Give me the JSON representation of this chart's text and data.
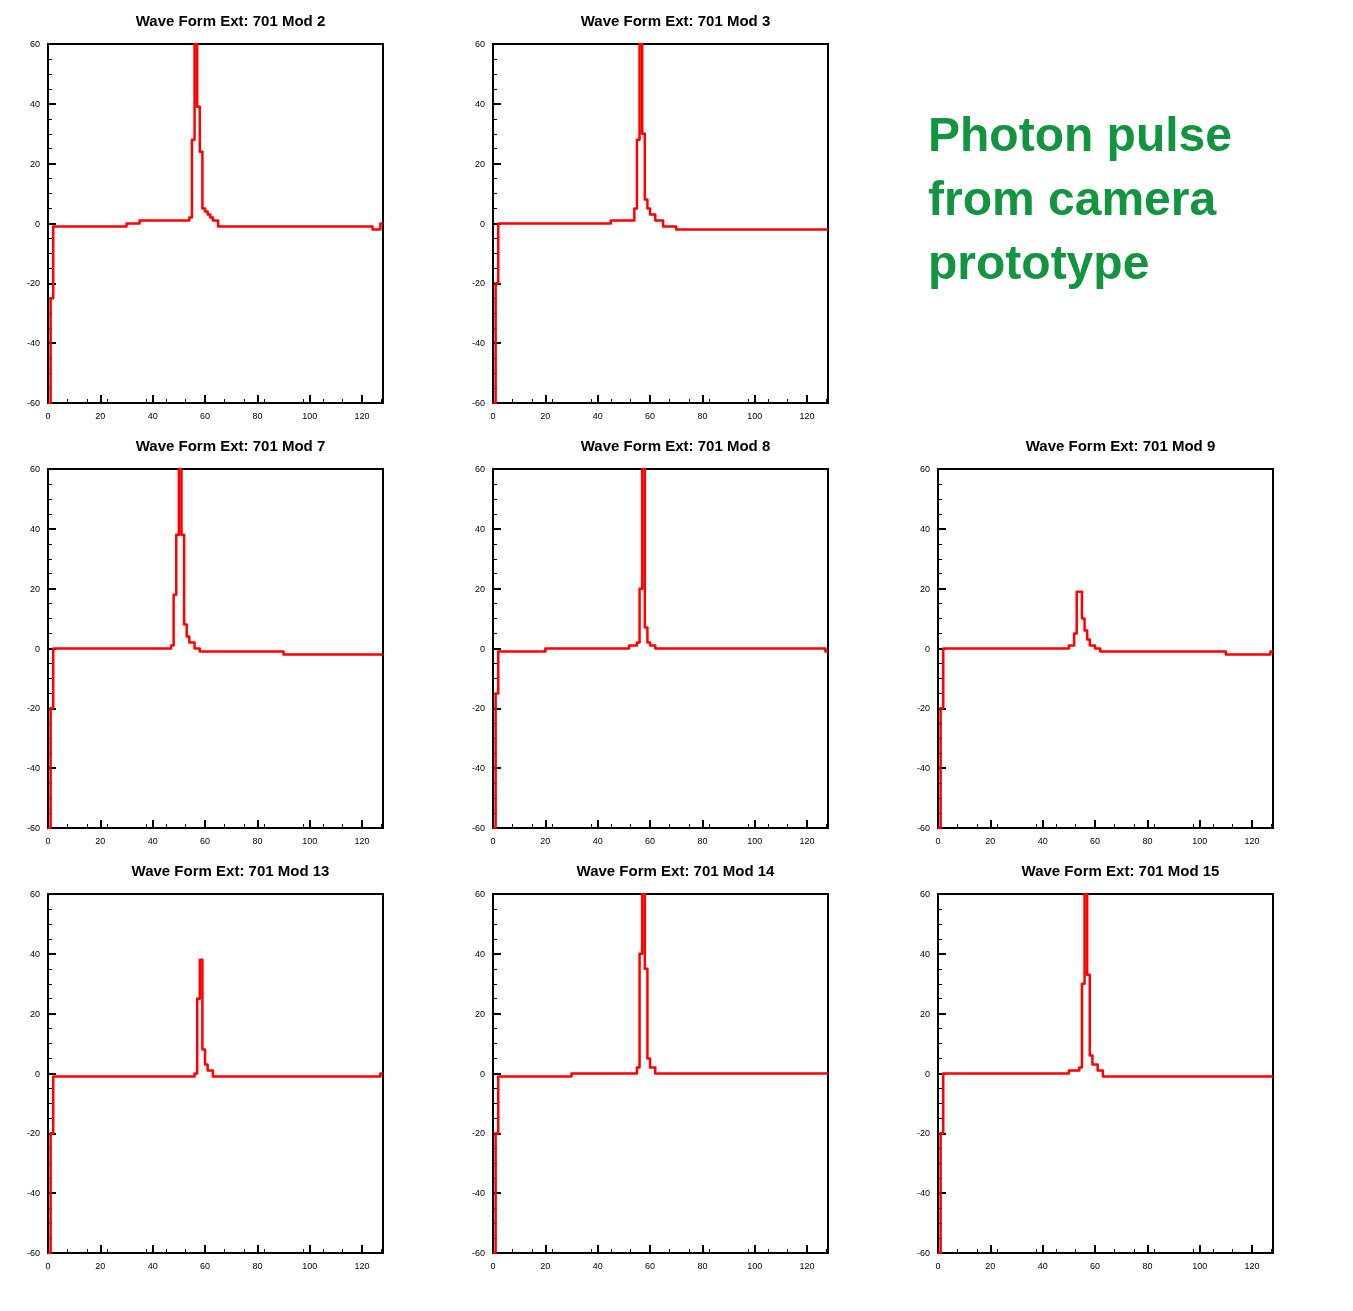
{
  "chart_data": [
    {
      "type": "step",
      "title": "Wave Form Ext: 701 Mod 2",
      "color": "#ff0000",
      "xlim": [
        0,
        128
      ],
      "xticks": [
        0,
        20,
        40,
        60,
        80,
        100,
        120
      ],
      "ylim": [
        -60,
        60
      ],
      "yticks": [
        -60,
        -40,
        -20,
        0,
        20,
        40,
        60
      ],
      "x": [
        0,
        1,
        2,
        10,
        20,
        30,
        35,
        45,
        50,
        54,
        55,
        56,
        57,
        58,
        59,
        60,
        61,
        62,
        63,
        65,
        70,
        80,
        90,
        100,
        110,
        120,
        124,
        127,
        128
      ],
      "values": [
        -60,
        -25,
        -1,
        -1,
        -1,
        0,
        1,
        1,
        1,
        2,
        28,
        60,
        39,
        24,
        5,
        4,
        3,
        2,
        1,
        -1,
        -1,
        -1,
        -1,
        -1,
        -1,
        -1,
        -2,
        0,
        0
      ]
    },
    {
      "type": "step",
      "title": "Wave Form Ext: 701 Mod 3",
      "color": "#ff0000",
      "xlim": [
        0,
        128
      ],
      "xticks": [
        0,
        20,
        40,
        60,
        80,
        100,
        120
      ],
      "ylim": [
        -60,
        60
      ],
      "yticks": [
        -60,
        -40,
        -20,
        0,
        20,
        40,
        60
      ],
      "x": [
        0,
        1,
        2,
        10,
        30,
        45,
        52,
        54,
        55,
        56,
        57,
        58,
        59,
        60,
        62,
        65,
        70,
        90,
        110,
        127,
        128
      ],
      "values": [
        -60,
        -20,
        0,
        0,
        0,
        1,
        1,
        5,
        28,
        60,
        30,
        8,
        5,
        3,
        1,
        -1,
        -2,
        -2,
        -2,
        -2,
        -2
      ]
    },
    {
      "type": "other",
      "color": "#139440",
      "annotations": [
        "Photon pulse from camera prototype"
      ]
    },
    {
      "type": "step",
      "title": "Wave Form Ext: 701 Mod 7",
      "color": "#ff0000",
      "xlim": [
        0,
        128
      ],
      "xticks": [
        0,
        20,
        40,
        60,
        80,
        100,
        120
      ],
      "ylim": [
        -60,
        60
      ],
      "yticks": [
        -60,
        -40,
        -20,
        0,
        20,
        40,
        60
      ],
      "x": [
        0,
        1,
        2,
        30,
        46,
        47,
        48,
        49,
        50,
        51,
        52,
        53,
        54,
        56,
        58,
        70,
        90,
        110,
        127,
        128
      ],
      "values": [
        -60,
        -20,
        0,
        0,
        0,
        1,
        18,
        38,
        60,
        38,
        8,
        4,
        2,
        0,
        -1,
        -1,
        -2,
        -2,
        -2,
        -2
      ]
    },
    {
      "type": "step",
      "title": "Wave Form Ext: 701 Mod 8",
      "color": "#ff0000",
      "xlim": [
        0,
        128
      ],
      "xticks": [
        0,
        20,
        40,
        60,
        80,
        100,
        120
      ],
      "ylim": [
        -60,
        60
      ],
      "yticks": [
        -60,
        -40,
        -20,
        0,
        20,
        40,
        60
      ],
      "x": [
        0,
        1,
        2,
        20,
        40,
        52,
        55,
        56,
        57,
        58,
        59,
        60,
        62,
        90,
        120,
        127,
        128
      ],
      "values": [
        -60,
        -15,
        -1,
        0,
        0,
        1,
        2,
        20,
        60,
        7,
        2,
        1,
        0,
        0,
        0,
        -1,
        -1
      ]
    },
    {
      "type": "step",
      "title": "Wave Form Ext: 701 Mod 9",
      "color": "#ff0000",
      "xlim": [
        0,
        128
      ],
      "xticks": [
        0,
        20,
        40,
        60,
        80,
        100,
        120
      ],
      "ylim": [
        -60,
        60
      ],
      "yticks": [
        -60,
        -40,
        -20,
        0,
        20,
        40,
        60
      ],
      "x": [
        0,
        1,
        2,
        40,
        50,
        52,
        53,
        55,
        56,
        57,
        58,
        60,
        62,
        90,
        110,
        127,
        128
      ],
      "values": [
        -60,
        -20,
        0,
        0,
        1,
        5,
        19,
        10,
        6,
        3,
        1,
        0,
        -1,
        -1,
        -2,
        -1,
        -1
      ]
    },
    {
      "type": "step",
      "title": "Wave Form Ext: 701 Mod 13",
      "color": "#ff0000",
      "xlim": [
        0,
        128
      ],
      "xticks": [
        0,
        20,
        40,
        60,
        80,
        100,
        120
      ],
      "ylim": [
        -60,
        60
      ],
      "yticks": [
        -60,
        -40,
        -20,
        0,
        20,
        40,
        60
      ],
      "x": [
        0,
        1,
        2,
        20,
        54,
        56,
        57,
        58,
        59,
        60,
        61,
        63,
        100,
        127,
        128
      ],
      "values": [
        -60,
        -20,
        -1,
        -1,
        -1,
        0,
        25,
        38,
        8,
        3,
        1,
        -1,
        -1,
        0,
        0
      ]
    },
    {
      "type": "step",
      "title": "Wave Form Ext: 701 Mod 14",
      "color": "#ff0000",
      "xlim": [
        0,
        128
      ],
      "xticks": [
        0,
        20,
        40,
        60,
        80,
        100,
        120
      ],
      "ylim": [
        -60,
        60
      ],
      "yticks": [
        -60,
        -40,
        -20,
        0,
        20,
        40,
        60
      ],
      "x": [
        0,
        1,
        2,
        30,
        54,
        55,
        56,
        57,
        58,
        59,
        60,
        62,
        80,
        100,
        127,
        128
      ],
      "values": [
        -60,
        -20,
        -1,
        0,
        0,
        2,
        40,
        60,
        35,
        5,
        2,
        0,
        0,
        0,
        0,
        0
      ]
    },
    {
      "type": "step",
      "title": "Wave Form Ext: 701 Mod 15",
      "color": "#ff0000",
      "xlim": [
        0,
        128
      ],
      "xticks": [
        0,
        20,
        40,
        60,
        80,
        100,
        120
      ],
      "ylim": [
        -60,
        60
      ],
      "yticks": [
        -60,
        -40,
        -20,
        0,
        20,
        40,
        60
      ],
      "x": [
        0,
        1,
        2,
        30,
        50,
        54,
        55,
        56,
        57,
        58,
        59,
        61,
        63,
        90,
        127,
        128
      ],
      "values": [
        -60,
        -20,
        0,
        0,
        1,
        2,
        30,
        60,
        33,
        6,
        3,
        1,
        -1,
        -1,
        -1,
        -1
      ]
    }
  ]
}
